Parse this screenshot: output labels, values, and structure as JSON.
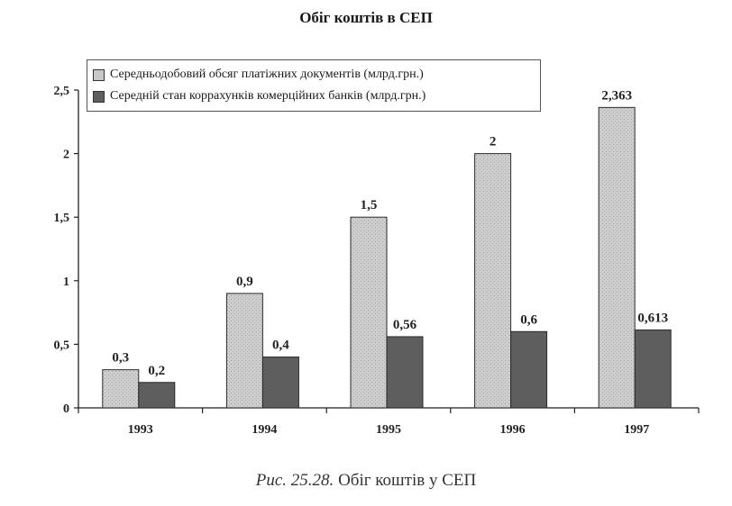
{
  "chart_data": {
    "type": "bar",
    "title": "Обіг коштів в СЕП",
    "xlabel": "",
    "ylabel": "",
    "categories": [
      "1993",
      "1994",
      "1995",
      "1996",
      "1997"
    ],
    "ylim": [
      0,
      2.5
    ],
    "yticks": [
      "0",
      "0,5",
      "1",
      "1,5",
      "2",
      "2,5"
    ],
    "ytick_values": [
      0,
      0.5,
      1,
      1.5,
      2,
      2.5
    ],
    "legend_position": "top-left",
    "grid": false,
    "series": [
      {
        "name": "Середньодобовий обсяг платіжних документів (млрд.грн.)",
        "values": [
          0.3,
          0.9,
          1.5,
          2,
          2.363
        ],
        "labels": [
          "0,3",
          "0,9",
          "1,5",
          "2",
          "2,363"
        ],
        "color": "#c8c8c8"
      },
      {
        "name": "Середній стан коррахунків комерційних банків (млрд.грн.)",
        "values": [
          0.2,
          0.4,
          0.56,
          0.6,
          0.613
        ],
        "labels": [
          "0,2",
          "0,4",
          "0,56",
          "0,6",
          "0,613"
        ],
        "color": "#5e5e5e"
      }
    ]
  },
  "caption": {
    "figure_label": "Рис. 25.28.",
    "text": "Обіг коштів у СЕП"
  }
}
